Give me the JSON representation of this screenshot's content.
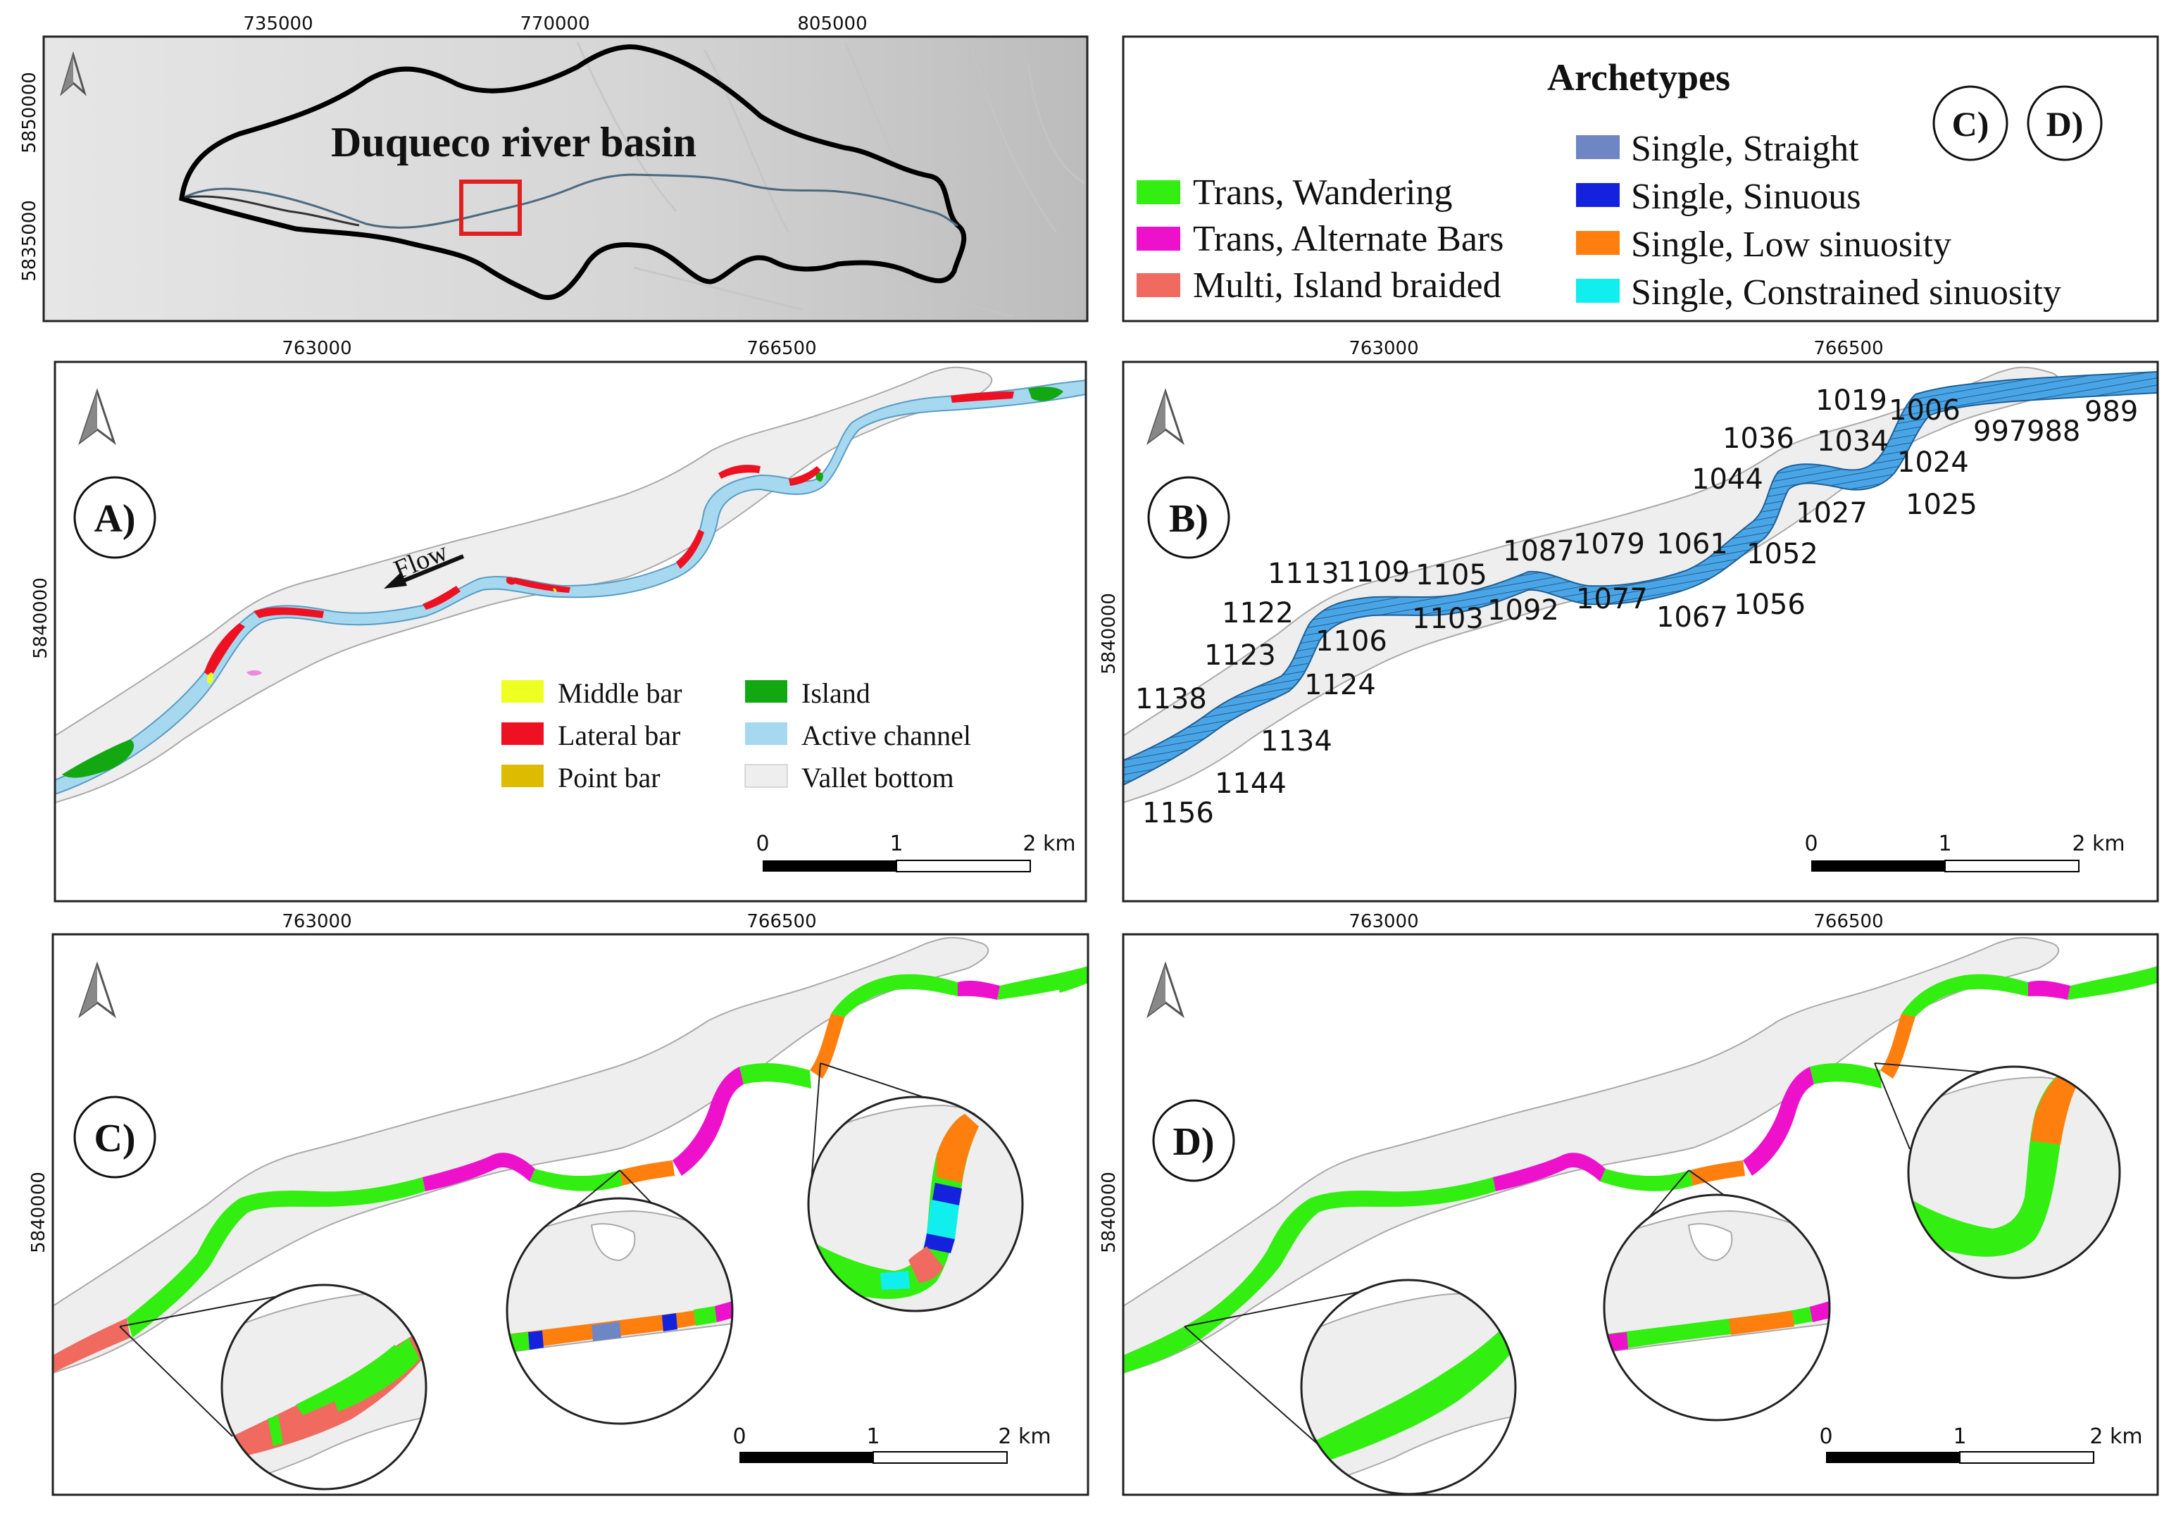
{
  "overview": {
    "title": "Duqueco river basin",
    "x_ticks": [
      "735000",
      "770000",
      "805000"
    ],
    "y_ticks": [
      "5850000",
      "5835000"
    ]
  },
  "legend_archetypes": {
    "title": "Archetypes",
    "items": [
      {
        "label": "Trans, Wandering",
        "color": "#33ee11"
      },
      {
        "label": "Trans, Alternate Bars",
        "color": "#ee11cc"
      },
      {
        "label": "Multi, Island braided",
        "color": "#f06a60"
      },
      {
        "label": "Single, Straight",
        "color": "#6f86c4"
      },
      {
        "label": "Single, Sinuous",
        "color": "#1522dd"
      },
      {
        "label": "Single, Low sinuosity",
        "color": "#ff7f0e"
      },
      {
        "label": "Single, Constrained sinuosity",
        "color": "#11eeee"
      }
    ],
    "panel_refs": [
      "C)",
      "D)"
    ]
  },
  "panels": {
    "a": {
      "letter": "A)",
      "x_ticks": [
        "763000",
        "766500"
      ],
      "y_tick": "5840000",
      "flow_label": "Flow"
    },
    "b": {
      "letter": "B)",
      "x_ticks": [
        "763000",
        "766500"
      ],
      "y_tick": "5840000"
    },
    "c": {
      "letter": "C)",
      "x_ticks": [
        "763000",
        "766500"
      ],
      "y_tick": "5840000"
    },
    "d": {
      "letter": "D)",
      "x_ticks": [
        "763000",
        "766500"
      ],
      "y_tick": "5840000"
    }
  },
  "legend_units": {
    "items": [
      {
        "label": "Middle bar",
        "color": "#eeff22"
      },
      {
        "label": "Island",
        "color": "#11a811"
      },
      {
        "label": "Lateral bar",
        "color": "#ee1122"
      },
      {
        "label": "Active channel",
        "color": "#a6d8f0"
      },
      {
        "label": "Point bar",
        "color": "#ddbb00"
      },
      {
        "label": "Vallet bottom",
        "color": "#eeeeee"
      }
    ]
  },
  "scalebar": {
    "labels": [
      "0",
      "1",
      "2 km"
    ]
  },
  "segment_ids": [
    "1156",
    "1144",
    "1138",
    "1134",
    "1124",
    "1123",
    "1122",
    "1106",
    "1113",
    "1109",
    "1105",
    "1103",
    "1092",
    "1087",
    "1079",
    "1077",
    "1067",
    "1061",
    "1056",
    "1052",
    "1044",
    "1036",
    "1034",
    "1027",
    "1025",
    "1024",
    "1019",
    "1006",
    "997",
    "988",
    "989"
  ],
  "colors": {
    "valley": "#eeeeee",
    "river_blue": "#4aa5e6",
    "zoom_frame": "#222222",
    "red_box": "#e02020"
  }
}
